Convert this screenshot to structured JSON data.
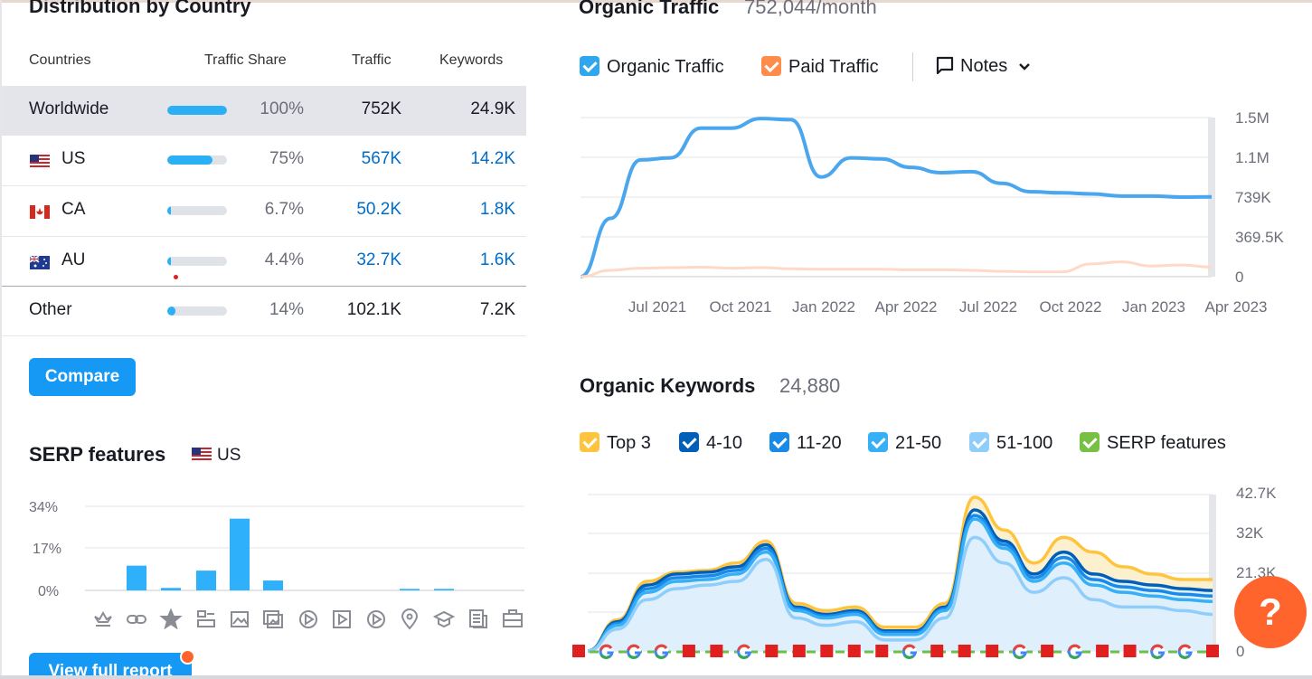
{
  "distribution": {
    "title": "Distribution by Country",
    "headers": {
      "country": "Countries",
      "share": "Traffic Share",
      "traffic": "Traffic",
      "keywords": "Keywords"
    },
    "rows": [
      {
        "name": "Worldwide",
        "share": "100%",
        "share_fraction": 1.0,
        "traffic": "752K",
        "keywords": "24.9K"
      },
      {
        "name": "US",
        "share": "75%",
        "share_fraction": 0.75,
        "traffic": "567K",
        "keywords": "14.2K"
      },
      {
        "name": "CA",
        "share": "6.7%",
        "share_fraction": 0.067,
        "traffic": "50.2K",
        "keywords": "1.8K"
      },
      {
        "name": "AU",
        "share": "4.4%",
        "share_fraction": 0.044,
        "traffic": "32.7K",
        "keywords": "1.6K"
      },
      {
        "name": "Other",
        "share": "14%",
        "share_fraction": 0.14,
        "traffic": "102.1K",
        "keywords": "7.2K"
      }
    ],
    "compare_label": "Compare"
  },
  "serp": {
    "title": "SERP features",
    "region": "US",
    "view_label": "View full report",
    "chart_data": {
      "type": "bar",
      "title": "SERP features",
      "yticks": [
        "34%",
        "17%",
        "0%"
      ],
      "ylim": [
        0,
        34
      ],
      "categories": [
        "featured-snippet",
        "sitelinks",
        "reviews",
        "top-stories",
        "image",
        "image-pack",
        "video",
        "video-carousel",
        "knowledge-panel",
        "local-pack",
        "people-also-ask",
        "news",
        "jobs"
      ],
      "values": [
        0,
        10,
        1,
        8,
        29,
        4,
        0,
        0,
        0,
        0.6,
        0.6,
        0,
        0
      ]
    }
  },
  "organic_traffic": {
    "title": "Organic Traffic",
    "value": "752,044/month",
    "legend": {
      "organic": "Organic Traffic",
      "paid": "Paid Traffic",
      "notes": "Notes"
    },
    "colors": {
      "organic": "#4aa6ed",
      "paid": "#fdd9c6"
    },
    "chart_data": {
      "type": "line",
      "x_labels": [
        "Jul 2021",
        "Oct 2021",
        "Jan 2022",
        "Apr 2022",
        "Jul 2022",
        "Oct 2022",
        "Jan 2023",
        "Apr 2023"
      ],
      "y_labels": [
        "1.5M",
        "1.1M",
        "739K",
        "369.5K",
        "0"
      ],
      "ylim": [
        0,
        1500000
      ],
      "series": [
        {
          "name": "Organic Traffic",
          "values": [
            0,
            550000,
            1100000,
            1120000,
            1400000,
            1400000,
            1490000,
            1480000,
            940000,
            1120000,
            1110000,
            1030000,
            980000,
            990000,
            880000,
            800000,
            790000,
            780000,
            760000,
            760000,
            750000,
            752000
          ]
        },
        {
          "name": "Paid Traffic",
          "values": [
            0,
            60000,
            80000,
            85000,
            90000,
            80000,
            85000,
            75000,
            70000,
            70000,
            70000,
            65000,
            65000,
            60000,
            50000,
            45000,
            45000,
            120000,
            140000,
            100000,
            110000,
            90000
          ]
        }
      ]
    }
  },
  "organic_keywords": {
    "title": "Organic Keywords",
    "value": "24,880",
    "legend": [
      "Top 3",
      "4-10",
      "11-20",
      "21-50",
      "51-100",
      "SERP features"
    ],
    "legend_colors": [
      "#ffc43d",
      "#005fb8",
      "#1a8ae8",
      "#35b0f7",
      "#8fcdfb",
      "#76c043"
    ],
    "chart_data": {
      "type": "area",
      "y_labels": [
        "42.7K",
        "32K",
        "21.3K",
        "0"
      ],
      "ylim": [
        0,
        42700
      ],
      "series": [
        {
          "name": "51-100",
          "values": [
            0,
            6000,
            14000,
            17000,
            18000,
            19000,
            25000,
            9000,
            7000,
            8000,
            3000,
            3000,
            9000,
            31000,
            24000,
            16000,
            20000,
            14000,
            12000,
            12000,
            11000,
            10000
          ]
        },
        {
          "name": "21-50",
          "values": [
            0,
            7000,
            16000,
            19000,
            19500,
            21000,
            27000,
            11000,
            9000,
            10000,
            4500,
            4500,
            11000,
            36000,
            28000,
            19000,
            24000,
            18000,
            16000,
            15000,
            14000,
            13500
          ]
        },
        {
          "name": "11-20",
          "values": [
            0,
            7500,
            17000,
            20000,
            20500,
            22000,
            28000,
            11500,
            9500,
            10500,
            5000,
            5000,
            11500,
            37000,
            29000,
            20000,
            25500,
            19500,
            17500,
            16500,
            15500,
            15000
          ]
        },
        {
          "name": "4-10",
          "values": [
            0,
            8000,
            18000,
            21000,
            21500,
            23000,
            29000,
            12000,
            10000,
            11000,
            5500,
            5500,
            12000,
            38500,
            30000,
            21000,
            27000,
            21000,
            19000,
            18000,
            17000,
            16500
          ]
        },
        {
          "name": "Top 3",
          "values": [
            0,
            8500,
            19000,
            21500,
            22000,
            24000,
            30000,
            13000,
            11000,
            12000,
            6500,
            6500,
            13000,
            42000,
            33000,
            24000,
            31000,
            27000,
            23000,
            21000,
            19500,
            19500
          ]
        }
      ],
      "markers": [
        "flag",
        "google",
        "google",
        "google",
        "flag",
        "flag",
        "google",
        "flag",
        "flag",
        "flag",
        "flag",
        "flag",
        "google",
        "flag",
        "flag",
        "flag",
        "google",
        "flag",
        "google",
        "flag",
        "flag",
        "google",
        "google",
        "flag"
      ]
    }
  },
  "help_label": "?"
}
